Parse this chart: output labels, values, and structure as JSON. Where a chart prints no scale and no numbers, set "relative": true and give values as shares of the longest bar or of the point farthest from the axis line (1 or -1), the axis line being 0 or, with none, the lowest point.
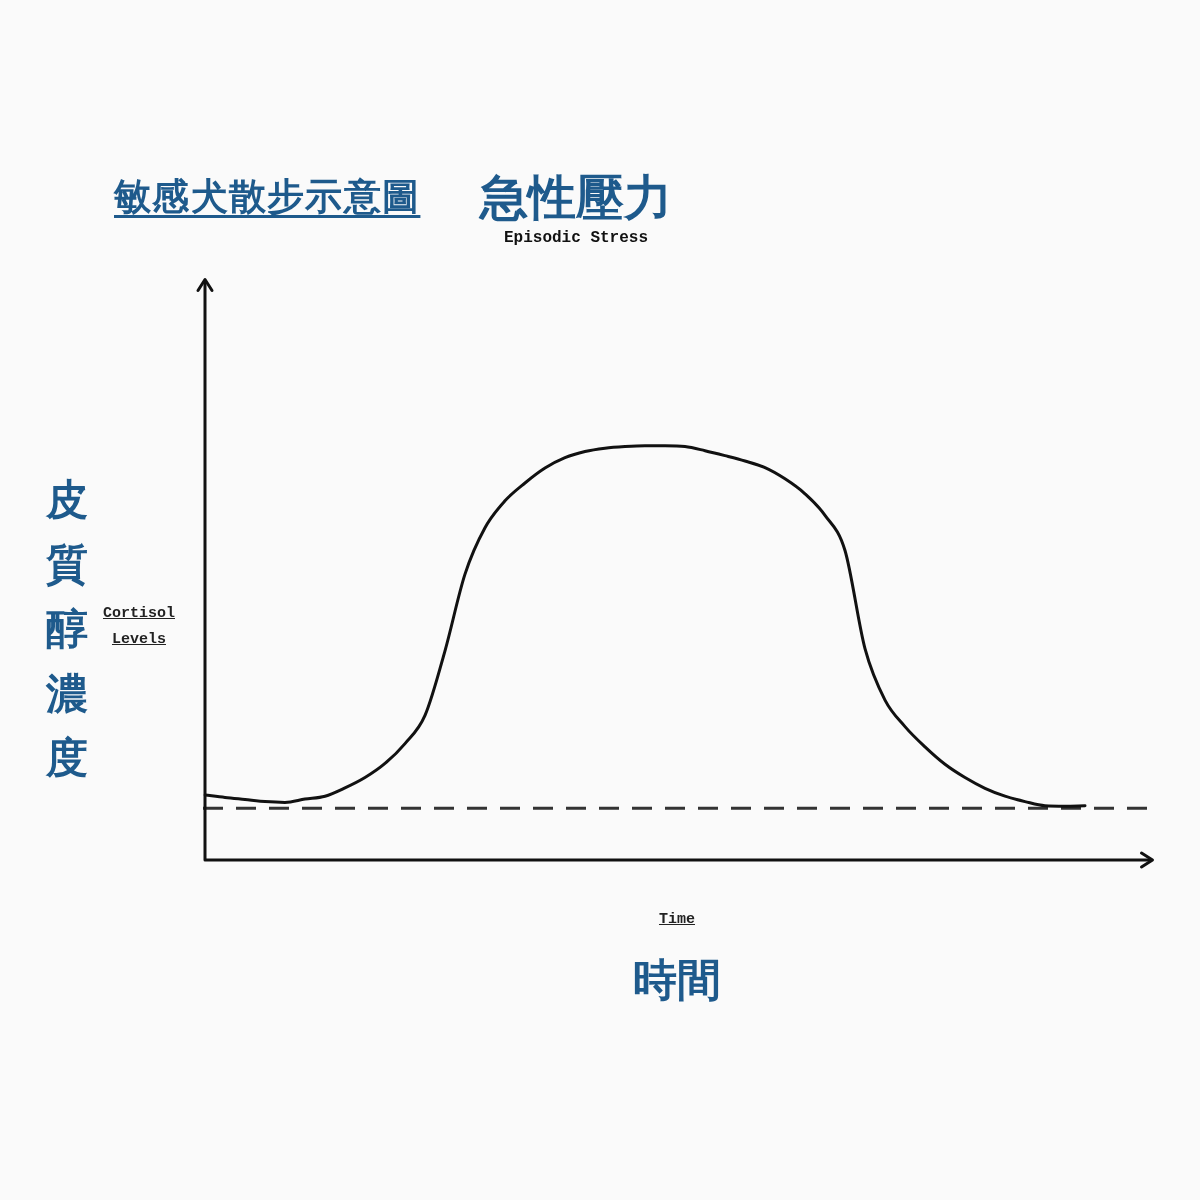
{
  "chart_data": {
    "type": "line",
    "title": "急性壓力",
    "subtitle": "Episodic Stress",
    "xlabel": "時間",
    "ylabel": "皮質醇濃度",
    "annotations": [
      "敏感犬散步示意圖",
      "Cortisol Levels",
      "Time"
    ],
    "relative": true,
    "categories": [
      null,
      null,
      null,
      null,
      null,
      null,
      null,
      null,
      null,
      null,
      null,
      null,
      null,
      null,
      null,
      null,
      null,
      null,
      null,
      null,
      null,
      null,
      null,
      null,
      null,
      null,
      null,
      null,
      null,
      null,
      null,
      null,
      null,
      null,
      null,
      null,
      null,
      null,
      null,
      null,
      null,
      null,
      null,
      null,
      null,
      null,
      null,
      null
    ],
    "series": [
      {
        "color": "#111111",
        "values": [
          0.157,
          0.151,
          0.146,
          0.141,
          0.139,
          0.147,
          0.154,
          0.174,
          0.199,
          0.233,
          0.281,
          0.349,
          0.505,
          0.69,
          0.802,
          0.867,
          0.91,
          0.946,
          0.971,
          0.986,
          0.994,
          0.998,
          1,
          1,
          0.998,
          0.988,
          0.976,
          0.963,
          0.947,
          0.92,
          0.884,
          0.832,
          0.747,
          0.51,
          0.386,
          0.322,
          0.273,
          0.231,
          0.199,
          0.173,
          0.154,
          0.141,
          0.131,
          0.13,
          0.131,
          null,
          null,
          null
        ]
      }
    ],
    "ref_lines": [
      {
        "axis": "y",
        "value": 0.125,
        "color": "#333333",
        "line_style": "dashed"
      }
    ],
    "marker": "none",
    "legend": false
  }
}
